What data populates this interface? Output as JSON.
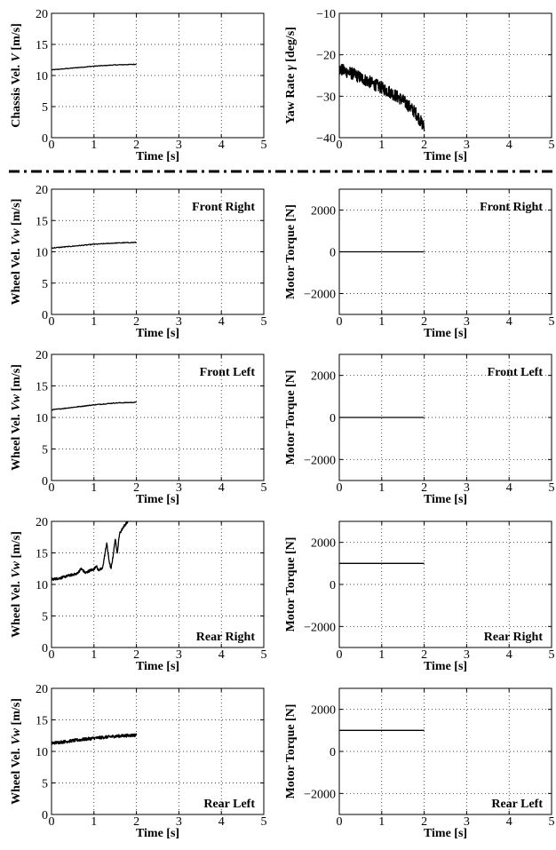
{
  "chart_data": [
    {
      "id": "chassis",
      "type": "line",
      "xlabel": "Time [s]",
      "ylabel": "Chassis Vel. V [m/s]",
      "inline_label": "",
      "xlim": [
        0,
        5
      ],
      "ylim": [
        0,
        20
      ],
      "xticks": [
        0,
        1,
        2,
        3,
        4,
        5
      ],
      "yticks": [
        0,
        5,
        10,
        15,
        20
      ],
      "grid": true,
      "series": [
        {
          "shape": "smooth",
          "x": [
            0,
            0.5,
            1,
            1.5,
            2
          ],
          "y": [
            10.9,
            11.2,
            11.5,
            11.7,
            11.8
          ],
          "noise": 0.05
        }
      ]
    },
    {
      "id": "yaw",
      "type": "line",
      "xlabel": "Time [s]",
      "ylabel": "Yaw Rate γ [deg/s]",
      "inline_label": "",
      "xlim": [
        0,
        5
      ],
      "ylim": [
        -40,
        -10
      ],
      "xticks": [
        0,
        1,
        2,
        3,
        4,
        5
      ],
      "yticks": [
        -40,
        -30,
        -20,
        -10
      ],
      "grid": true,
      "series": [
        {
          "shape": "noisy",
          "x": [
            0,
            0.3,
            0.6,
            0.9,
            1.2,
            1.5,
            1.8,
            2.0
          ],
          "y": [
            -23.5,
            -24.5,
            -26,
            -27.5,
            -29,
            -31,
            -34,
            -37.5
          ],
          "noise": 1.5
        }
      ]
    },
    {
      "id": "wheel-fr",
      "type": "line",
      "xlabel": "Time [s]",
      "ylabel": "Wheel Vel. Vw [m/s]",
      "inline_label": "Front Right",
      "xlim": [
        0,
        5
      ],
      "ylim": [
        0,
        20
      ],
      "xticks": [
        0,
        1,
        2,
        3,
        4,
        5
      ],
      "yticks": [
        0,
        5,
        10,
        15,
        20
      ],
      "grid": true,
      "series": [
        {
          "shape": "smooth",
          "x": [
            0,
            0.5,
            1,
            1.5,
            2
          ],
          "y": [
            10.6,
            10.9,
            11.2,
            11.4,
            11.5
          ],
          "noise": 0.06
        }
      ]
    },
    {
      "id": "torque-fr",
      "type": "line",
      "xlabel": "Time [s]",
      "ylabel": "Motor Torque [N]",
      "inline_label": "Front Right",
      "xlim": [
        0,
        5
      ],
      "ylim": [
        -3000,
        3000
      ],
      "xticks": [
        0,
        1,
        2,
        3,
        4,
        5
      ],
      "yticks": [
        -2000,
        0,
        2000
      ],
      "grid": true,
      "series": [
        {
          "shape": "smooth",
          "x": [
            0,
            2
          ],
          "y": [
            0,
            0
          ],
          "noise": 0
        }
      ]
    },
    {
      "id": "wheel-fl",
      "type": "line",
      "xlabel": "Time [s]",
      "ylabel": "Wheel Vel. Vw [m/s]",
      "inline_label": "Front Left",
      "xlim": [
        0,
        5
      ],
      "ylim": [
        0,
        20
      ],
      "xticks": [
        0,
        1,
        2,
        3,
        4,
        5
      ],
      "yticks": [
        0,
        5,
        10,
        15,
        20
      ],
      "grid": true,
      "series": [
        {
          "shape": "smooth",
          "x": [
            0,
            0.5,
            1,
            1.5,
            2
          ],
          "y": [
            11.2,
            11.6,
            12.0,
            12.3,
            12.4
          ],
          "noise": 0.06
        }
      ]
    },
    {
      "id": "torque-fl",
      "type": "line",
      "xlabel": "Time [s]",
      "ylabel": "Motor Torque [N]",
      "inline_label": "Front Left",
      "xlim": [
        0,
        5
      ],
      "ylim": [
        -3000,
        3000
      ],
      "xticks": [
        0,
        1,
        2,
        3,
        4,
        5
      ],
      "yticks": [
        -2000,
        0,
        2000
      ],
      "grid": true,
      "series": [
        {
          "shape": "smooth",
          "x": [
            0,
            2
          ],
          "y": [
            0,
            0
          ],
          "noise": 0
        }
      ]
    },
    {
      "id": "wheel-rr",
      "type": "line",
      "xlabel": "Time [s]",
      "ylabel": "Wheel Vel. Vw [m/s]",
      "inline_label": "Rear Right",
      "xlim": [
        0,
        5
      ],
      "ylim": [
        0,
        20
      ],
      "xticks": [
        0,
        1,
        2,
        3,
        4,
        5
      ],
      "yticks": [
        0,
        5,
        10,
        15,
        20
      ],
      "grid": true,
      "series": [
        {
          "shape": "noisy",
          "x": [
            0,
            0.2,
            0.4,
            0.6,
            0.7,
            0.8,
            0.9,
            1.0,
            1.05,
            1.1,
            1.2,
            1.25,
            1.3,
            1.35,
            1.4,
            1.45,
            1.5,
            1.55,
            1.6,
            1.7,
            1.8
          ],
          "y": [
            10.8,
            11.0,
            11.4,
            11.7,
            12.5,
            11.8,
            12.2,
            12.4,
            13.0,
            12.3,
            12.5,
            14.5,
            16.6,
            14.0,
            12.4,
            14.5,
            17.2,
            15.0,
            18.0,
            19.2,
            20.0
          ],
          "noise": 0.2
        }
      ]
    },
    {
      "id": "torque-rr",
      "type": "line",
      "xlabel": "Time [s]",
      "ylabel": "Motor Torque [N]",
      "inline_label": "Rear Right",
      "xlim": [
        0,
        5
      ],
      "ylim": [
        -3000,
        3000
      ],
      "xticks": [
        0,
        1,
        2,
        3,
        4,
        5
      ],
      "yticks": [
        -2000,
        0,
        2000
      ],
      "grid": true,
      "series": [
        {
          "shape": "smooth",
          "x": [
            0,
            2
          ],
          "y": [
            1000,
            1000
          ],
          "noise": 0
        }
      ]
    },
    {
      "id": "wheel-rl",
      "type": "line",
      "xlabel": "Time [s]",
      "ylabel": "Wheel Vel. Vw [m/s]",
      "inline_label": "Rear Left",
      "xlim": [
        0,
        5
      ],
      "ylim": [
        0,
        20
      ],
      "xticks": [
        0,
        1,
        2,
        3,
        4,
        5
      ],
      "yticks": [
        0,
        5,
        10,
        15,
        20
      ],
      "grid": true,
      "series": [
        {
          "shape": "noisy",
          "x": [
            0,
            0.5,
            1,
            1.5,
            2
          ],
          "y": [
            11.3,
            11.7,
            12.1,
            12.4,
            12.6
          ],
          "noise": 0.25
        }
      ]
    },
    {
      "id": "torque-rl",
      "type": "line",
      "xlabel": "Time [s]",
      "ylabel": "Motor Torque [N]",
      "inline_label": "Rear Left",
      "xlim": [
        0,
        5
      ],
      "ylim": [
        -3000,
        3000
      ],
      "xticks": [
        0,
        1,
        2,
        3,
        4,
        5
      ],
      "yticks": [
        -2000,
        0,
        2000
      ],
      "grid": true,
      "series": [
        {
          "shape": "smooth",
          "x": [
            0,
            2
          ],
          "y": [
            1000,
            1000
          ],
          "noise": 0
        }
      ]
    }
  ]
}
